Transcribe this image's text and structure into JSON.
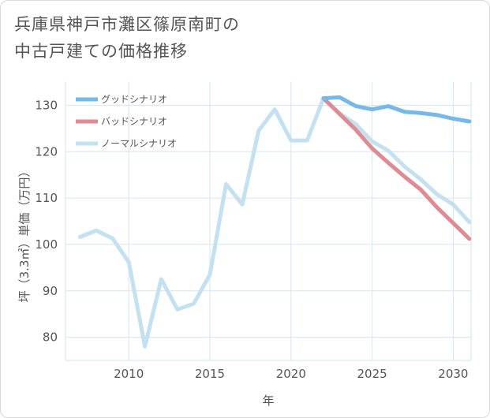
{
  "title_lines": [
    "兵庫県神戸市灘区篠原南町の",
    "中古戸建ての価格推移"
  ],
  "chart_data": {
    "type": "line",
    "title": "兵庫県神戸市灘区篠原南町の中古戸建ての価格推移",
    "xlabel": "年",
    "ylabel": "坪（3.3㎡）単価（万円）",
    "xlim": [
      2006.1,
      2031.1
    ],
    "ylim": [
      75,
      135
    ],
    "xticks": [
      2010,
      2015,
      2020,
      2025,
      2030
    ],
    "yticks": [
      80,
      90,
      100,
      110,
      120,
      130
    ],
    "grid": true,
    "legend": "top-left",
    "series": [
      {
        "name": "グッドシナリオ",
        "color": "#74b9ea",
        "x": [
          2022,
          2023,
          2024,
          2025,
          2026,
          2027,
          2028,
          2029,
          2030,
          2031
        ],
        "values": [
          131.5,
          131.7,
          129.8,
          129.1,
          129.8,
          128.6,
          128.3,
          127.9,
          127.1,
          126.5
        ]
      },
      {
        "name": "バッドシナリオ",
        "color": "#e08a93",
        "x": [
          2022,
          2023,
          2024,
          2025,
          2026,
          2027,
          2028,
          2029,
          2030,
          2031
        ],
        "values": [
          131.5,
          128.1,
          124.7,
          120.7,
          117.6,
          114.6,
          111.8,
          108,
          104.6,
          101.2
        ]
      },
      {
        "name": "ノーマルシナリオ",
        "color": "#c3e1f0",
        "x": [
          2007,
          2008,
          2009,
          2010,
          2011,
          2012,
          2013,
          2014,
          2015,
          2016,
          2017,
          2018,
          2019,
          2020,
          2021,
          2022,
          2023,
          2024,
          2025,
          2026,
          2027,
          2028,
          2029,
          2030,
          2031
        ],
        "values": [
          101.6,
          103,
          101.3,
          96.2,
          78,
          92.5,
          86,
          87.2,
          93.5,
          113,
          108.6,
          124.5,
          129.1,
          122.4,
          122.4,
          131.5,
          128.2,
          125.9,
          122.2,
          120.2,
          116.8,
          114,
          110.8,
          108.6,
          104.8
        ]
      }
    ]
  }
}
